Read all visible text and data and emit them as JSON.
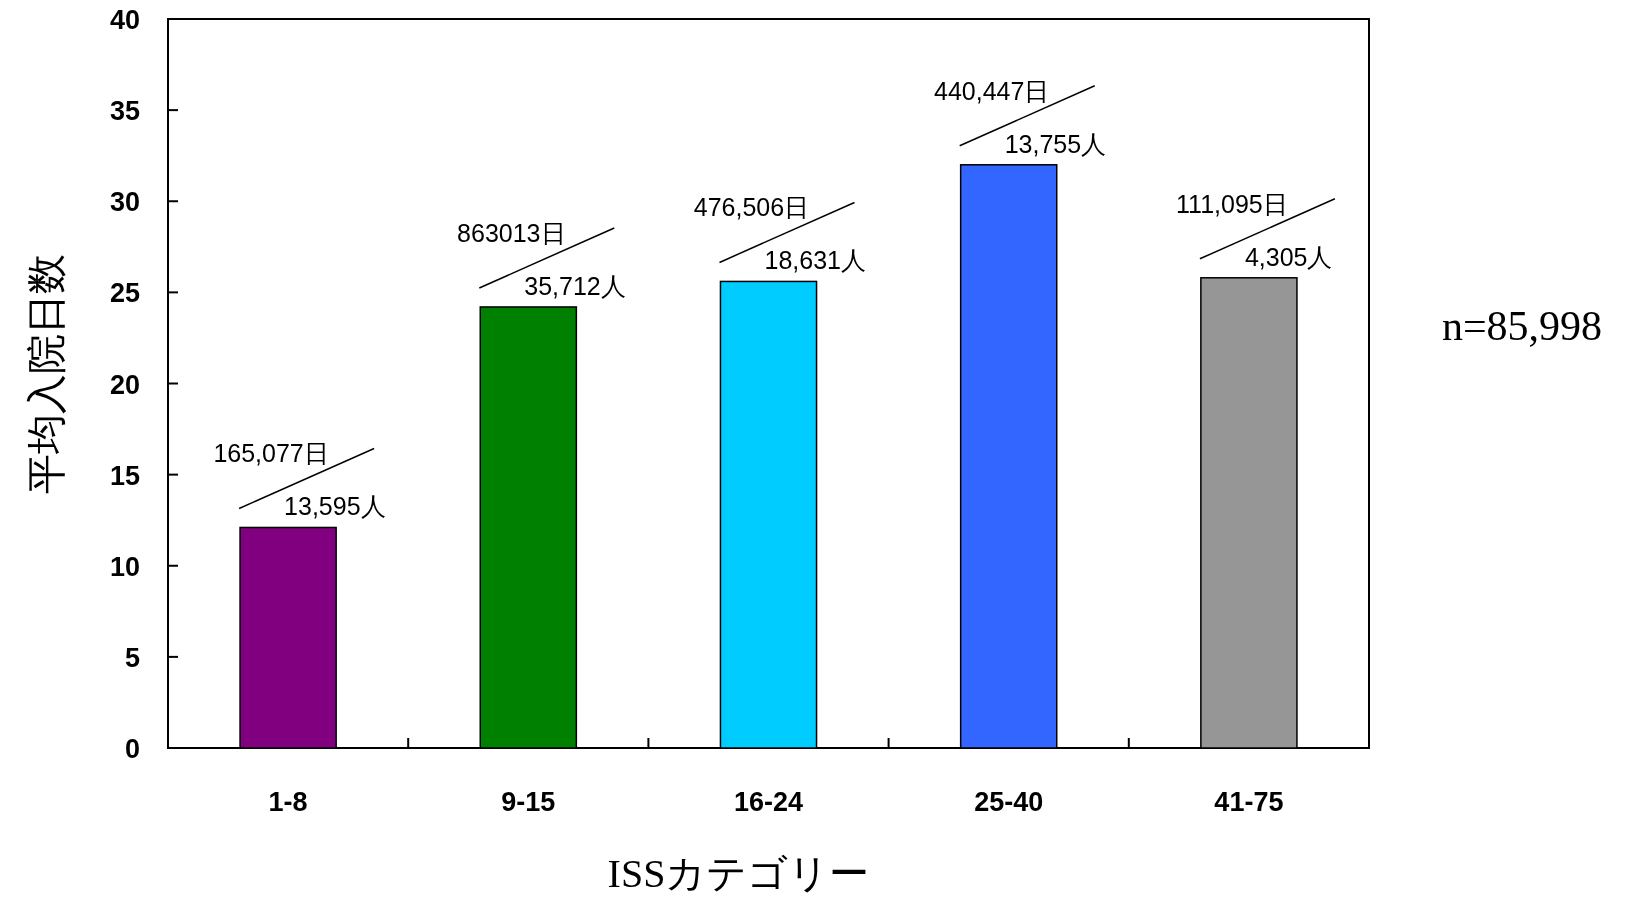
{
  "chart_data": {
    "type": "bar",
    "xlabel": "ISSカテゴリー",
    "ylabel": "平均入院日数",
    "categories": [
      "1-8",
      "9-15",
      "16-24",
      "25-40",
      "41-75"
    ],
    "values": [
      12.1,
      24.2,
      25.6,
      32.0,
      25.8
    ],
    "colors": [
      "#800080",
      "#008000",
      "#00ccff",
      "#3366ff",
      "#969696"
    ],
    "ylim": [
      0,
      40
    ],
    "yticks": [
      0,
      5,
      10,
      15,
      20,
      25,
      30,
      35,
      40
    ],
    "grid": false,
    "annotations": [
      {
        "text": "165,077日",
        "x": "1-8",
        "y": 12.1
      },
      {
        "text": "13,595人",
        "x": "1-8",
        "y": 12.1
      },
      {
        "text": "863013日",
        "x": "9-15",
        "y": 24.2
      },
      {
        "text": "35,712人",
        "x": "9-15",
        "y": 24.2
      },
      {
        "text": "476,506日",
        "x": "16-24",
        "y": 25.6
      },
      {
        "text": "18,631人",
        "x": "16-24",
        "y": 25.6
      },
      {
        "text": "440,447日",
        "x": "25-40",
        "y": 32.0
      },
      {
        "text": "13,755人",
        "x": "25-40",
        "y": 32.0
      },
      {
        "text": "111,095日",
        "x": "41-75",
        "y": 25.8
      },
      {
        "text": "4,305人",
        "x": "41-75",
        "y": 25.8
      },
      "n=85,998"
    ]
  }
}
